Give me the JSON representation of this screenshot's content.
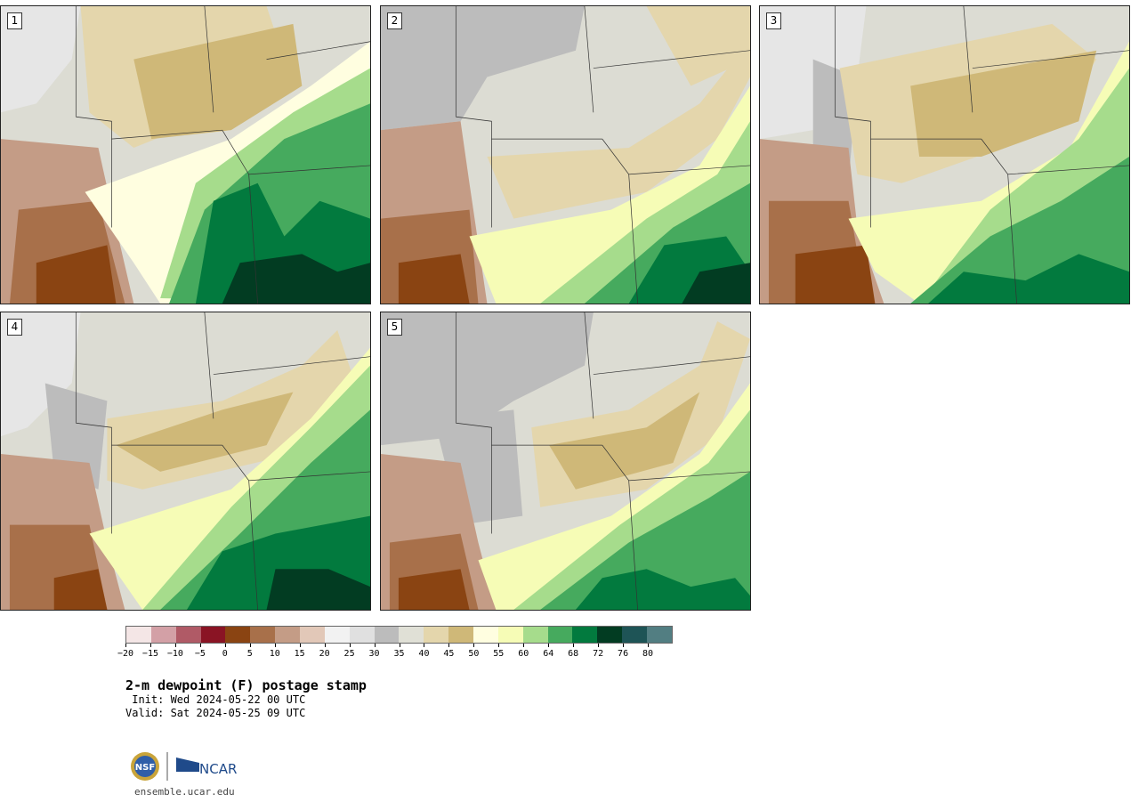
{
  "panels": [
    {
      "number": "1",
      "pattern": "dry-west-moist-south"
    },
    {
      "number": "2",
      "pattern": "gray-north-moist-southeast"
    },
    {
      "number": "3",
      "pattern": "tan-north-moist-south"
    },
    {
      "number": "4",
      "pattern": "tan-north-moist-southeast"
    },
    {
      "number": "5",
      "pattern": "gray-north-moist-southeast"
    }
  ],
  "colorbar": {
    "colors": [
      "#f4e6e6",
      "#d3a0a6",
      "#b05a66",
      "#8a1424",
      "#8a4412",
      "#a8704a",
      "#c49c86",
      "#e2c8b8",
      "#f2f2f2",
      "#e0e0e0",
      "#bcbcbc",
      "#e0e0d6",
      "#e4d6ac",
      "#cfb878",
      "#fffee0",
      "#f6fcb6",
      "#a6dc8c",
      "#46aa5e",
      "#027a3e",
      "#023c22",
      "#1e5456",
      "#527e82"
    ],
    "tick_labels": [
      "−20",
      "−15",
      "−10",
      "−5",
      "0",
      "5",
      "10",
      "15",
      "20",
      "25",
      "30",
      "35",
      "40",
      "45",
      "50",
      "55",
      "60",
      "64",
      "68",
      "72",
      "76",
      "80"
    ]
  },
  "title": "2-m dewpoint (F) postage stamp",
  "init": " Init: Wed 2024-05-22 00 UTC",
  "valid": "Valid: Sat 2024-05-25 09 UTC",
  "logo": {
    "nsf": "NSF",
    "ncar": "NCAR"
  },
  "site": "ensemble.ucar.edu"
}
